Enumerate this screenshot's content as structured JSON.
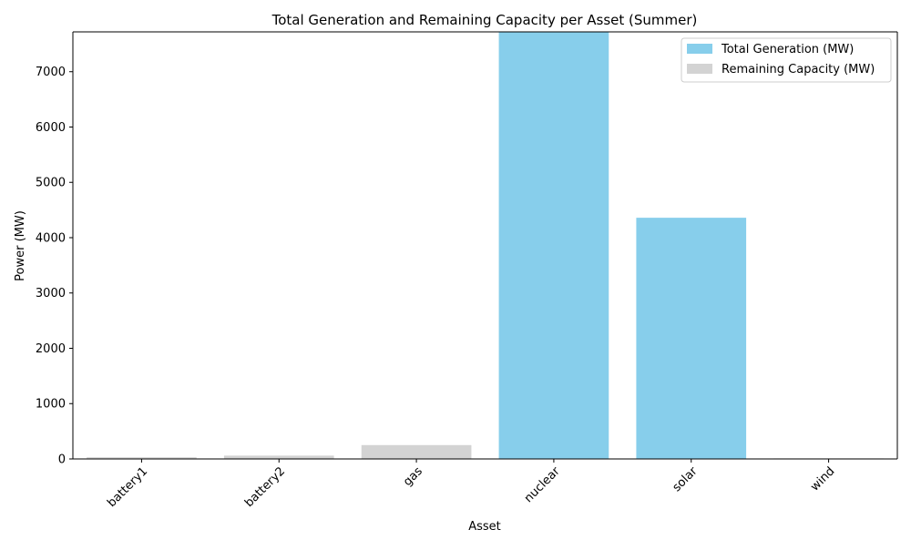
{
  "chart_data": {
    "type": "bar",
    "title": "Total Generation and Remaining Capacity per Asset (Summer)",
    "xlabel": "Asset",
    "ylabel": "Power (MW)",
    "categories": [
      "battery1",
      "battery2",
      "gas",
      "nuclear",
      "solar",
      "wind"
    ],
    "series": [
      {
        "name": "Total Generation (MW)",
        "color": "#87ceeb",
        "values": [
          0,
          0,
          0,
          7720,
          4360,
          0
        ]
      },
      {
        "name": "Remaining Capacity (MW)",
        "color": "#d3d3d3",
        "values": [
          30,
          60,
          250,
          0,
          0,
          10
        ]
      }
    ],
    "ylim": [
      0,
      7720
    ],
    "yticks": [
      0,
      1000,
      2000,
      3000,
      4000,
      5000,
      6000,
      7000
    ],
    "legend_position": "top-right",
    "grid": false,
    "stacked": true
  }
}
